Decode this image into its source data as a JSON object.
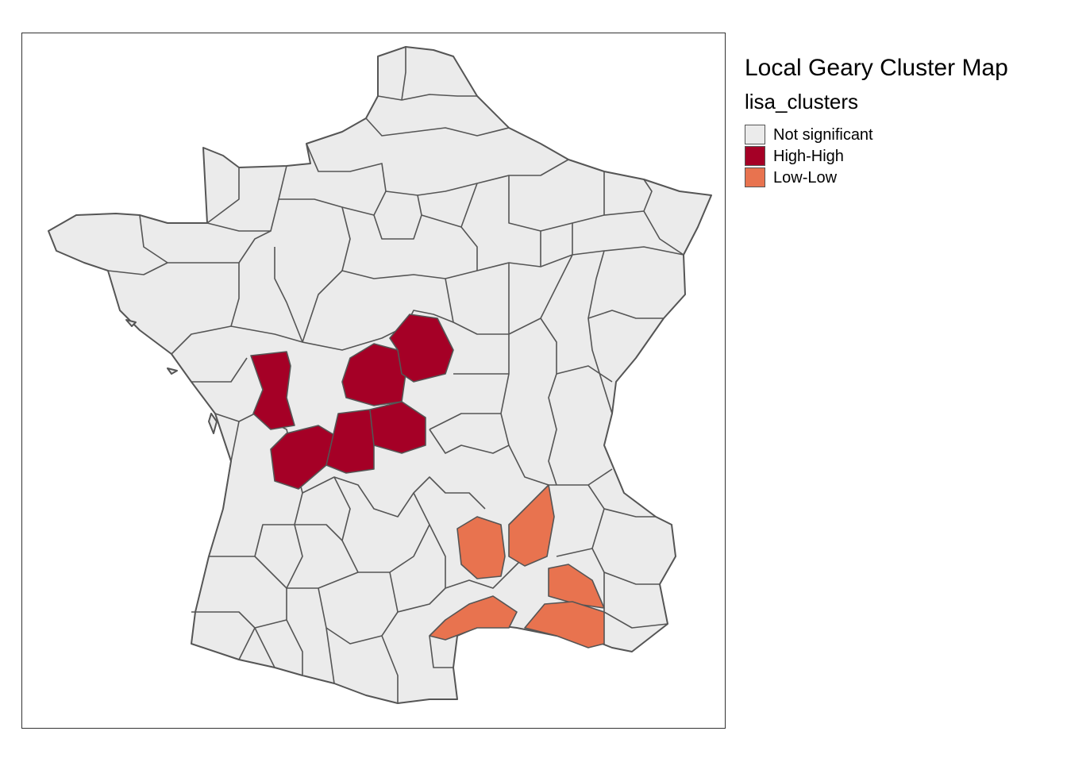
{
  "map": {
    "title": "Local Geary Cluster Map",
    "legend_title": "lisa_clusters",
    "border_color": "#555555",
    "classes": [
      {
        "key": "ns",
        "label": "Not significant",
        "color": "#EBEBEB"
      },
      {
        "key": "hh",
        "label": "High-High",
        "color": "#A50026"
      },
      {
        "key": "ll",
        "label": "Low-Low",
        "color": "#E8734F"
      }
    ]
  }
}
